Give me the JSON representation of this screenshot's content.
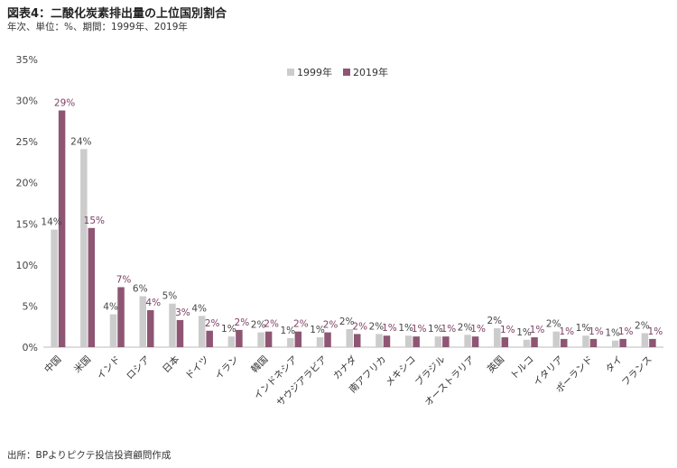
{
  "header": {
    "title": "図表4：二酸化炭素排出量の上位国別割合",
    "subtitle": "年次、単位：%、期間：1999年、2019年"
  },
  "footer": {
    "source": "出所：BPよりピクテ投信投資顧問作成"
  },
  "colors": {
    "series1999": "#cccccc",
    "series2019": "#8e5673",
    "label2019": "#7b3f62",
    "label1999": "#444444",
    "axis": "#bbbbbb"
  },
  "chart_data": {
    "type": "bar",
    "title": "",
    "xlabel": "",
    "ylabel": "",
    "ylim": [
      0,
      35
    ],
    "yticks": [
      "0%",
      "5%",
      "10%",
      "15%",
      "20%",
      "25%",
      "30%",
      "35%"
    ],
    "ytick_values": [
      0,
      5,
      10,
      15,
      20,
      25,
      30,
      35
    ],
    "grid": false,
    "legend": "top-center",
    "categories": [
      "中国",
      "米国",
      "インド",
      "ロシア",
      "日本",
      "ドイツ",
      "イラン",
      "韓国",
      "インドネシア",
      "サウジアラビア",
      "カナダ",
      "南アフリカ",
      "メキシコ",
      "ブラジル",
      "オーストラリア",
      "英国",
      "トルコ",
      "イタリア",
      "ポーランド",
      "タイ",
      "フランス"
    ],
    "series": [
      {
        "name": "1999年",
        "values": [
          14.3,
          24.1,
          4.0,
          6.2,
          5.3,
          3.8,
          1.3,
          1.8,
          1.1,
          1.2,
          2.2,
          1.6,
          1.4,
          1.3,
          1.5,
          2.3,
          0.9,
          1.9,
          1.4,
          0.8,
          1.7
        ],
        "labels": [
          "14%",
          "24%",
          "4%",
          "6%",
          "5%",
          "4%",
          "1%",
          "2%",
          "1%",
          "1%",
          "2%",
          "2%",
          "1%",
          "1%",
          "2%",
          "2%",
          "1%",
          "2%",
          "1%",
          "1%",
          "2%"
        ]
      },
      {
        "name": "2019年",
        "values": [
          28.8,
          14.5,
          7.3,
          4.5,
          3.3,
          2.0,
          2.1,
          1.9,
          1.9,
          1.8,
          1.6,
          1.4,
          1.3,
          1.3,
          1.3,
          1.2,
          1.2,
          1.0,
          1.0,
          1.0,
          1.0
        ],
        "labels": [
          "29%",
          "15%",
          "7%",
          "4%",
          "3%",
          "2%",
          "2%",
          "2%",
          "2%",
          "2%",
          "2%",
          "1%",
          "1%",
          "1%",
          "1%",
          "1%",
          "1%",
          "1%",
          "1%",
          "1%",
          "1%"
        ]
      }
    ]
  }
}
